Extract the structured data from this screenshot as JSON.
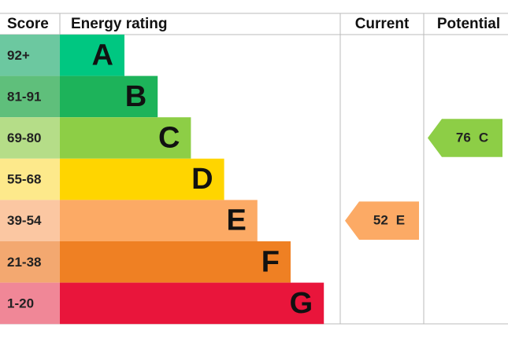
{
  "header": {
    "score": "Score",
    "rating": "Energy rating",
    "current": "Current",
    "potential": "Potential"
  },
  "bands": [
    {
      "score": "92+",
      "letter": "A",
      "color": "#00c781",
      "score_color": "#6cc8a0"
    },
    {
      "score": "81-91",
      "letter": "B",
      "color": "#1db35a",
      "score_color": "#5fbf7b"
    },
    {
      "score": "69-80",
      "letter": "C",
      "color": "#8dce46",
      "score_color": "#b5dd88"
    },
    {
      "score": "55-68",
      "letter": "D",
      "color": "#ffd500",
      "score_color": "#fde98b"
    },
    {
      "score": "39-54",
      "letter": "E",
      "color": "#fcaa65",
      "score_color": "#fbc7a2"
    },
    {
      "score": "21-38",
      "letter": "F",
      "color": "#ef8023",
      "score_color": "#f3a870"
    },
    {
      "score": "1-20",
      "letter": "G",
      "color": "#e9153b",
      "score_color": "#f08797"
    }
  ],
  "current": {
    "score": 52,
    "rating": "E"
  },
  "potential": {
    "score": 76,
    "rating": "C"
  }
}
